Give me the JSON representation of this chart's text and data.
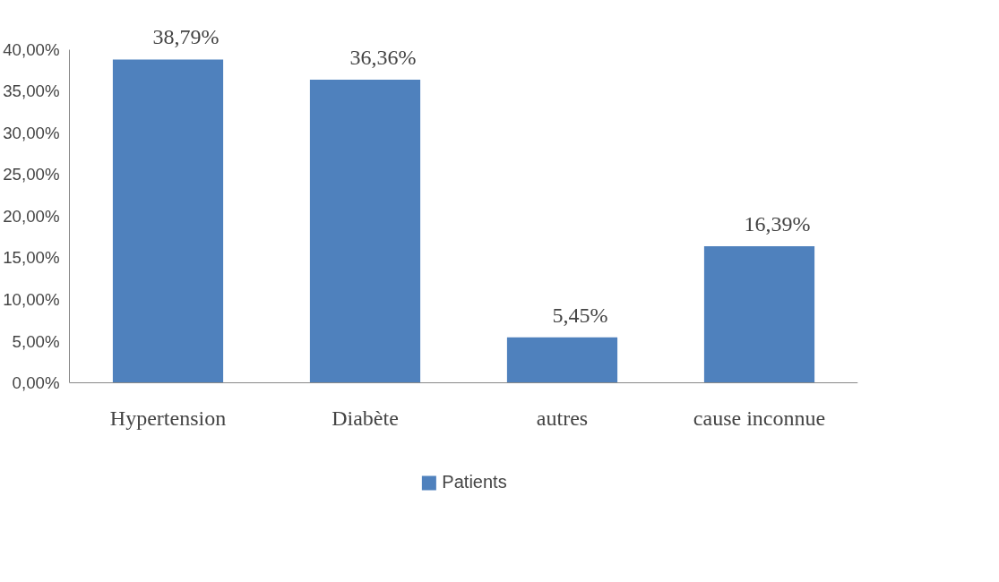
{
  "chart_data": {
    "type": "bar",
    "categories": [
      "Hypertension",
      "Diabète",
      "autres",
      "cause inconnue"
    ],
    "series": [
      {
        "name": "Patients",
        "color": "#4f81bd",
        "values": [
          38.79,
          36.36,
          5.45,
          16.39
        ],
        "value_labels": [
          "38,79%",
          "36,36%",
          "5,45%",
          "16,39%"
        ]
      }
    ],
    "ylim": [
      0,
      40
    ],
    "yticks": [
      {
        "value": 0,
        "label": "0,00%"
      },
      {
        "value": 5,
        "label": "5,00%"
      },
      {
        "value": 10,
        "label": "10,00%"
      },
      {
        "value": 15,
        "label": "15,00%"
      },
      {
        "value": 20,
        "label": "20,00%"
      },
      {
        "value": 25,
        "label": "25,00%"
      },
      {
        "value": 30,
        "label": "30,00%"
      },
      {
        "value": 35,
        "label": "35,00%"
      },
      {
        "value": 40,
        "label": "40,00%"
      }
    ],
    "grid": false,
    "legend": "bottom"
  }
}
